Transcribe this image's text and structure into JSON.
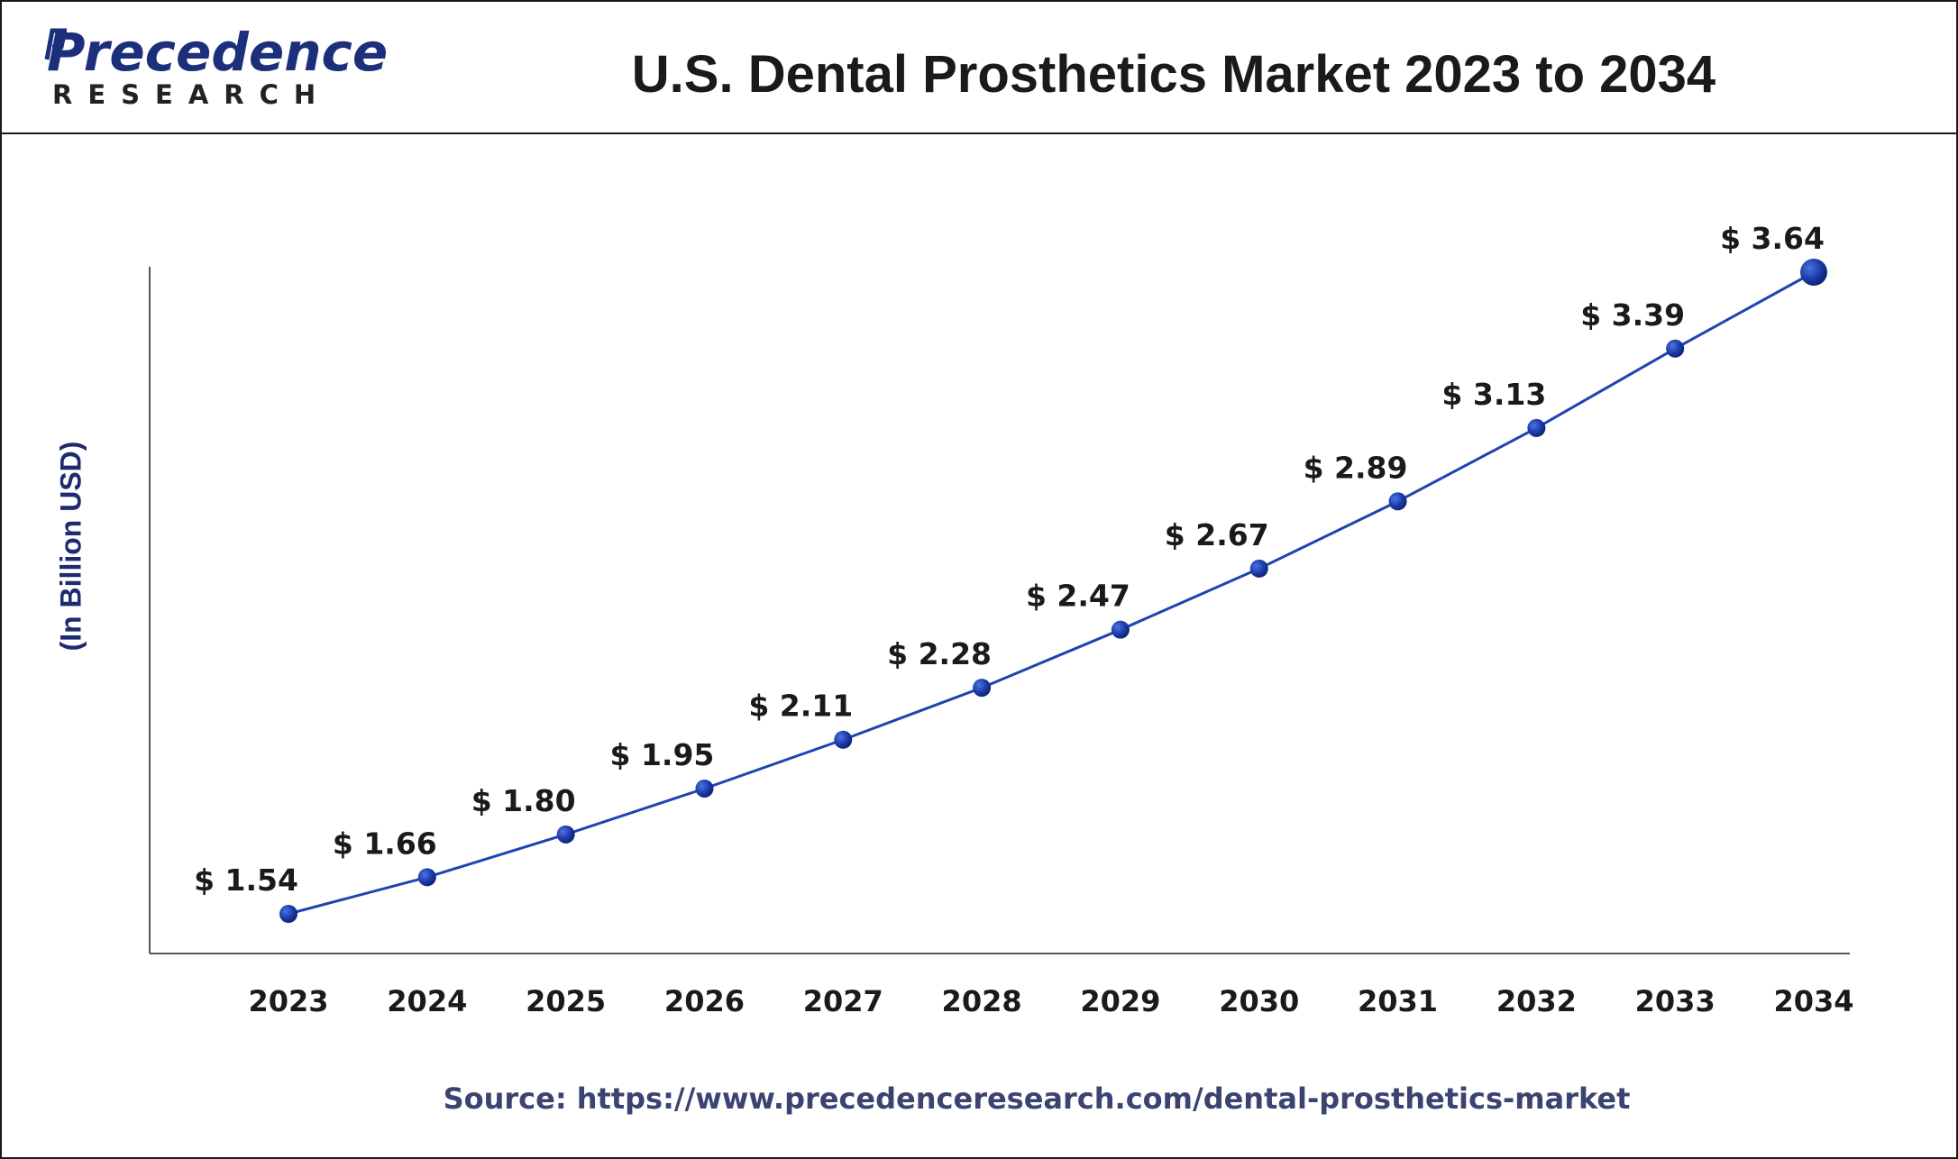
{
  "logo": {
    "name": "Precedence",
    "sub": "RESEARCH"
  },
  "title": "U.S. Dental Prosthetics Market 2023 to 2034",
  "source": "Source: https://www.precedenceresearch.com/dental-prosthetics-market",
  "colors": {
    "line": "#1f43b0",
    "marker": "#1a3aa8",
    "axis": "#555555",
    "text": "#1a1a1a",
    "accent": "#1e2b6e"
  },
  "chart_data": {
    "type": "line",
    "title": "U.S. Dental Prosthetics Market 2023 to 2034",
    "xlabel": "",
    "ylabel": "(In Billion USD)",
    "categories": [
      "2023",
      "2024",
      "2025",
      "2026",
      "2027",
      "2028",
      "2029",
      "2030",
      "2031",
      "2032",
      "2033",
      "2034"
    ],
    "values": [
      1.54,
      1.66,
      1.8,
      1.95,
      2.11,
      2.28,
      2.47,
      2.67,
      2.89,
      3.13,
      3.39,
      3.64
    ],
    "data_labels": [
      "$ 1.54",
      "$ 1.66",
      "$ 1.80",
      "$ 1.95",
      "$ 2.11",
      "$ 2.28",
      "$ 2.47",
      "$ 2.67",
      "$ 2.89",
      "$ 3.13",
      "$ 3.39",
      "$ 3.64"
    ],
    "grid": false,
    "legend": "none"
  }
}
